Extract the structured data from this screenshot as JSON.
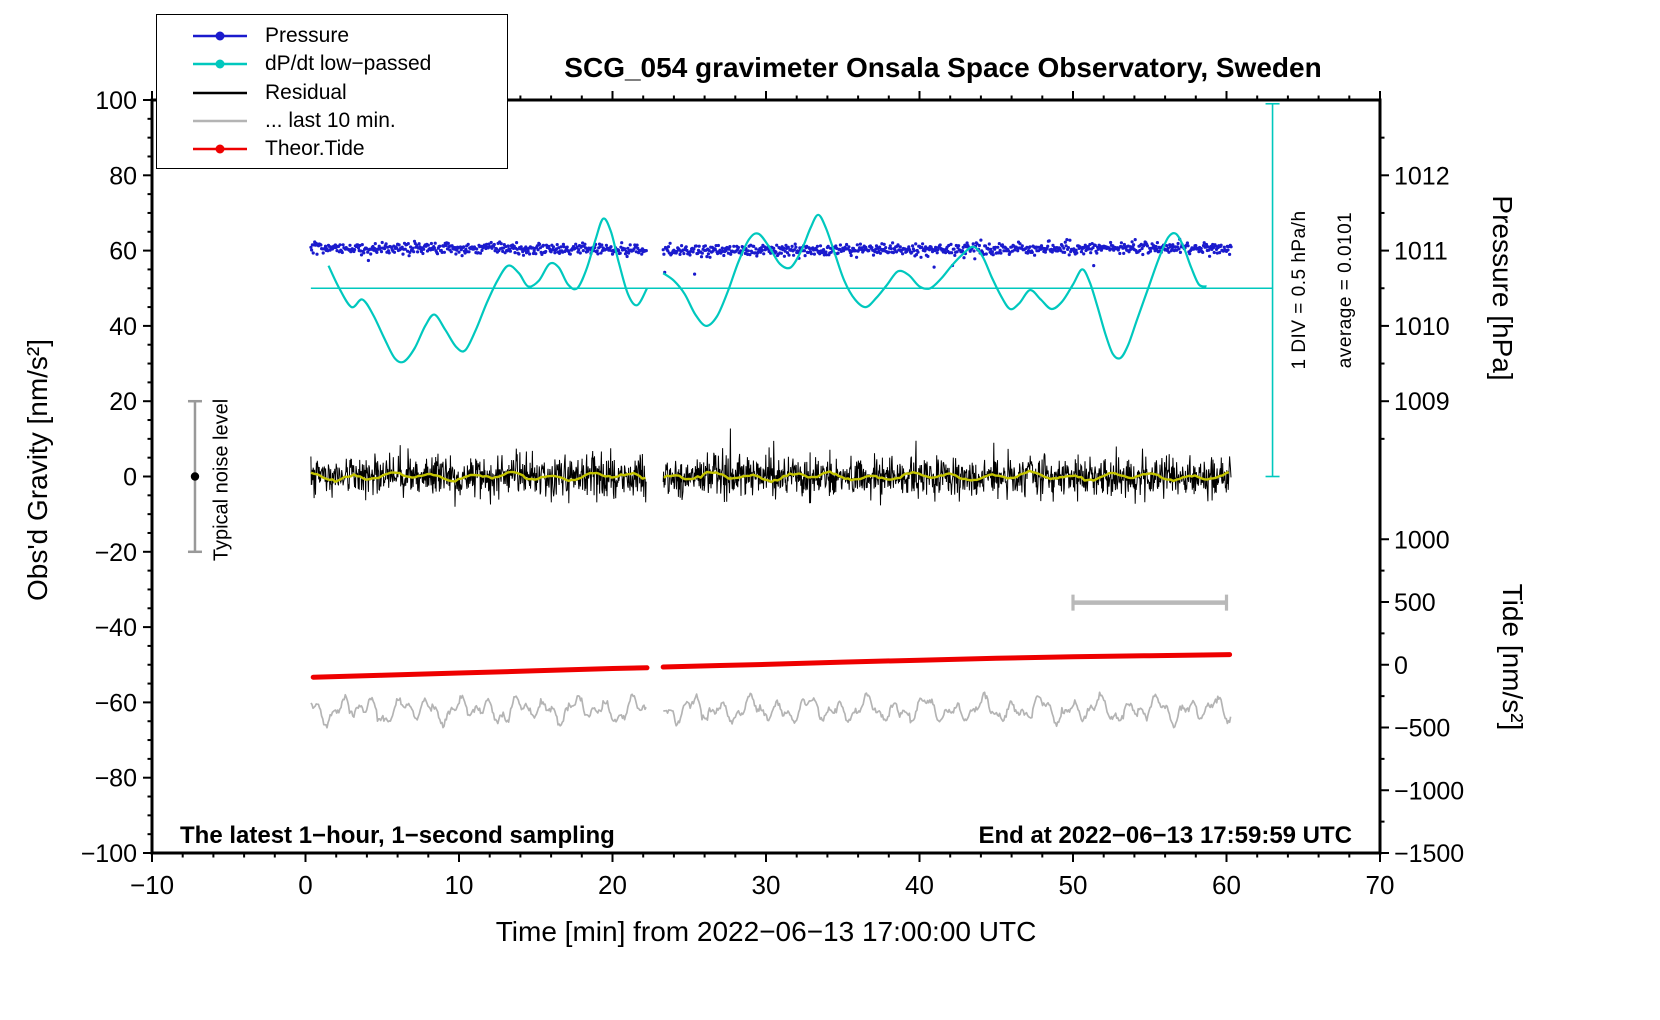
{
  "chart_data": {
    "type": "line",
    "title": "SCG_054 gravimeter Onsala Space Observatory, Sweden",
    "xlabel": "Time [min] from 2022−06−13 17:00:00 UTC",
    "ylabel_left": "Obs'd Gravity [nm/s²]",
    "ylabel_pressure": "Pressure [hPa]",
    "ylabel_tide": "Tide [nm/s²]",
    "annotation_bottom_left": "The latest 1−hour, 1−second sampling",
    "annotation_bottom_right": "End at 2022−06−13 17:59:59 UTC",
    "xlim": [
      -10,
      70
    ],
    "ylim": [
      -100,
      100
    ],
    "x_ticks": [
      -10,
      0,
      10,
      20,
      30,
      40,
      50,
      60,
      70
    ],
    "y_ticks": [
      -100,
      -80,
      -60,
      -40,
      -20,
      0,
      20,
      40,
      60,
      80,
      100
    ],
    "x_minor_step": 2,
    "y_minor_step": 5,
    "pressure_axis": {
      "ticks": [
        1009,
        1010,
        1011,
        1012
      ],
      "gravity_per_hpa": 20,
      "hpa_at_gravity0": 1008,
      "minor_step_hpa": 0.5
    },
    "tide_axis": {
      "ticks": [
        -1500,
        -1000,
        -500,
        0,
        500,
        1000
      ],
      "tide_per_gravity": 30,
      "gravity_at_tide0": -50,
      "minor_step": 250
    },
    "gap": [
      22.25,
      23.3
    ],
    "noise_bar": {
      "label": "Typical noise level",
      "x": -7.2,
      "y_center": 0,
      "half_range": 20,
      "color": "#999999"
    },
    "div_axis": {
      "label_div": "1 DIV = 0.5 hPa/h",
      "label_avg": "average = 0.0101",
      "x": 63,
      "y_top": 99,
      "y_bottom": 0,
      "zero_line_y": 50,
      "color": "#00c8be"
    },
    "scale_bar": {
      "x_start": 50,
      "x_end": 60,
      "y": -33.5,
      "color": "#b9b9b9"
    },
    "legend": [
      {
        "label": "Pressure",
        "color": "#1a1acd",
        "marker": "dot-line"
      },
      {
        "label": "dP/dt low−passed",
        "color": "#00c8be",
        "marker": "dot-line"
      },
      {
        "label": "Residual",
        "color": "#000000",
        "marker": "line"
      },
      {
        "label": "... last 10 min.",
        "color": "#b4b4b4",
        "marker": "line"
      },
      {
        "label": "Theor.Tide",
        "color": "#ee0000",
        "marker": "dot-line"
      }
    ],
    "series": [
      {
        "name": "Pressure",
        "type": "scatter",
        "color": "#1a1acd",
        "mean": 60.4,
        "std": 0.8,
        "slow_amp": 0.35,
        "outlier_prob": 0.005,
        "outlier_max": 5,
        "dt": 0.05,
        "x_start": 0.35,
        "x_end": 60.3,
        "seed": 101,
        "value_hpa": 1011.0
      },
      {
        "name": "Residual",
        "type": "noise",
        "color": "#000000",
        "mean": 0,
        "std": 2.7,
        "spike_prob": 0.012,
        "spike_scale": 2.4,
        "dt": 0.03,
        "x_start": 0.35,
        "x_end": 60.3,
        "width": 1,
        "seed": 202
      },
      {
        "name": "Residual low-passed",
        "type": "wave",
        "color": "#c3c300",
        "mean": 0,
        "waves": [
          [
            2.6,
            0.7,
            0.4
          ],
          [
            6.8,
            0.5,
            2.1
          ]
        ],
        "noise": 0.15,
        "dt": 0.2,
        "x_start": 0.35,
        "x_end": 60.3,
        "width": 2.4,
        "seed": 303
      },
      {
        "name": "Residual last 10 min",
        "type": "wave",
        "color": "#b4b4b4",
        "mean": -62,
        "waves": [
          [
            1.9,
            2.0,
            0.0
          ],
          [
            0.85,
            1.3,
            1.3
          ],
          [
            3.7,
            1.1,
            2.2
          ]
        ],
        "noise": 0.45,
        "dt": 0.07,
        "x_start": 0.35,
        "x_end": 60.3,
        "width": 1.7,
        "seed": 404
      },
      {
        "name": "Theor.Tide",
        "type": "line",
        "color": "#ee0000",
        "width": 5,
        "segments": [
          [
            [
              0.5,
              -53.3
            ],
            [
              5,
              -52.8
            ],
            [
              10,
              -52.2
            ],
            [
              15,
              -51.6
            ],
            [
              20,
              -51.0
            ],
            [
              22.25,
              -50.8
            ]
          ],
          [
            [
              23.3,
              -50.6
            ],
            [
              27,
              -50.2
            ],
            [
              30,
              -49.9
            ],
            [
              35,
              -49.3
            ],
            [
              40,
              -48.8
            ],
            [
              45,
              -48.3
            ],
            [
              50,
              -47.9
            ],
            [
              55,
              -47.6
            ],
            [
              60.2,
              -47.3
            ]
          ]
        ]
      },
      {
        "name": "dP/dt low-passed",
        "type": "smooth",
        "color": "#00c8be",
        "width": 2.2,
        "segments": [
          [
            [
              1.5,
              56
            ],
            [
              2.2,
              50
            ],
            [
              3.0,
              45
            ],
            [
              3.7,
              47
            ],
            [
              4.4,
              43
            ],
            [
              5.1,
              37
            ],
            [
              5.8,
              31.5
            ],
            [
              6.4,
              30.5
            ],
            [
              7.1,
              34
            ],
            [
              7.8,
              40
            ],
            [
              8.4,
              43
            ],
            [
              9.1,
              39
            ],
            [
              9.8,
              34.5
            ],
            [
              10.4,
              33.5
            ],
            [
              11.1,
              39
            ],
            [
              11.8,
              46
            ],
            [
              12.5,
              52
            ],
            [
              13.2,
              56
            ],
            [
              13.9,
              54
            ],
            [
              14.5,
              50.5
            ],
            [
              15.2,
              52
            ],
            [
              15.9,
              56.5
            ],
            [
              16.5,
              55.5
            ],
            [
              17.1,
              51
            ],
            [
              17.7,
              50
            ],
            [
              18.3,
              55
            ],
            [
              18.9,
              63
            ],
            [
              19.4,
              68.5
            ],
            [
              19.9,
              65
            ],
            [
              20.4,
              57
            ],
            [
              21.0,
              48.5
            ],
            [
              21.6,
              45.5
            ],
            [
              22.25,
              50
            ]
          ],
          [
            [
              23.3,
              54
            ],
            [
              24.0,
              52
            ],
            [
              24.7,
              48.5
            ],
            [
              25.4,
              43
            ],
            [
              26.1,
              40
            ],
            [
              26.8,
              42.5
            ],
            [
              27.5,
              49
            ],
            [
              28.2,
              57
            ],
            [
              28.9,
              63
            ],
            [
              29.5,
              64.5
            ],
            [
              30.2,
              61
            ],
            [
              30.9,
              56.5
            ],
            [
              31.6,
              55.5
            ],
            [
              32.3,
              60
            ],
            [
              32.9,
              66
            ],
            [
              33.4,
              69.5
            ],
            [
              33.9,
              66
            ],
            [
              34.5,
              59
            ],
            [
              35.1,
              52
            ],
            [
              35.8,
              47
            ],
            [
              36.5,
              45
            ],
            [
              37.2,
              47.5
            ],
            [
              37.9,
              51
            ],
            [
              38.6,
              54.5
            ],
            [
              39.3,
              53.5
            ],
            [
              40.0,
              50.5
            ],
            [
              40.7,
              50
            ],
            [
              41.4,
              52.5
            ],
            [
              42.1,
              56
            ],
            [
              42.8,
              59
            ],
            [
              43.5,
              61
            ],
            [
              44.1,
              58.5
            ],
            [
              44.7,
              53
            ],
            [
              45.3,
              48
            ],
            [
              45.9,
              44.5
            ],
            [
              46.5,
              46
            ],
            [
              47.2,
              49.5
            ],
            [
              47.9,
              47
            ],
            [
              48.6,
              44.5
            ],
            [
              49.3,
              46.5
            ],
            [
              50.0,
              51
            ],
            [
              50.6,
              55
            ],
            [
              51.1,
              51.5
            ],
            [
              51.6,
              45
            ],
            [
              52.1,
              38
            ],
            [
              52.6,
              32.5
            ],
            [
              53.1,
              31.5
            ],
            [
              53.6,
              35
            ],
            [
              54.2,
              42
            ],
            [
              54.9,
              50
            ],
            [
              55.6,
              58
            ],
            [
              56.2,
              63.5
            ],
            [
              56.7,
              64.5
            ],
            [
              57.2,
              61
            ],
            [
              57.7,
              55.5
            ],
            [
              58.2,
              51
            ],
            [
              58.7,
              50.5
            ]
          ]
        ]
      }
    ]
  }
}
